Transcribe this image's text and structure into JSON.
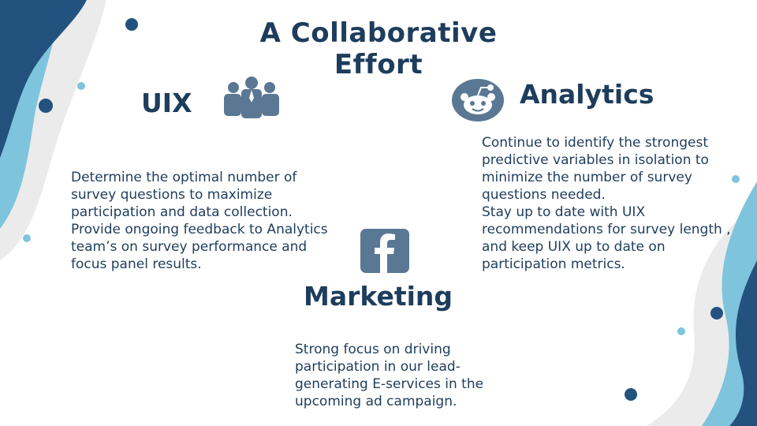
{
  "slide": {
    "title": "A Collaborative\nEffort",
    "sections": {
      "uix": {
        "heading": "UIX",
        "icon": "team-icon",
        "body": "Determine the optimal number of survey questions to maximize participation and data collection.\nProvide ongoing feedback to Analytics team’s on survey performance and focus panel results."
      },
      "analytics": {
        "heading": "Analytics",
        "icon": "reddit-icon",
        "body": "Continue to identify the strongest predictive variables in isolation to minimize the number of survey questions needed.\nStay up to date with UIX recommendations for survey length , and keep UIX up to date on participation metrics."
      },
      "marketing": {
        "heading": "Marketing",
        "icon": "facebook-icon",
        "body": "Strong focus on driving participation in our lead-generating E-services in the upcoming ad campaign."
      }
    }
  },
  "colors": {
    "dark_navy": "#1e3d5c",
    "deep_blue": "#23527f",
    "light_blue": "#7ec4dc",
    "icon_slate": "#5a7893",
    "wave_grey": "#ebebeb"
  }
}
